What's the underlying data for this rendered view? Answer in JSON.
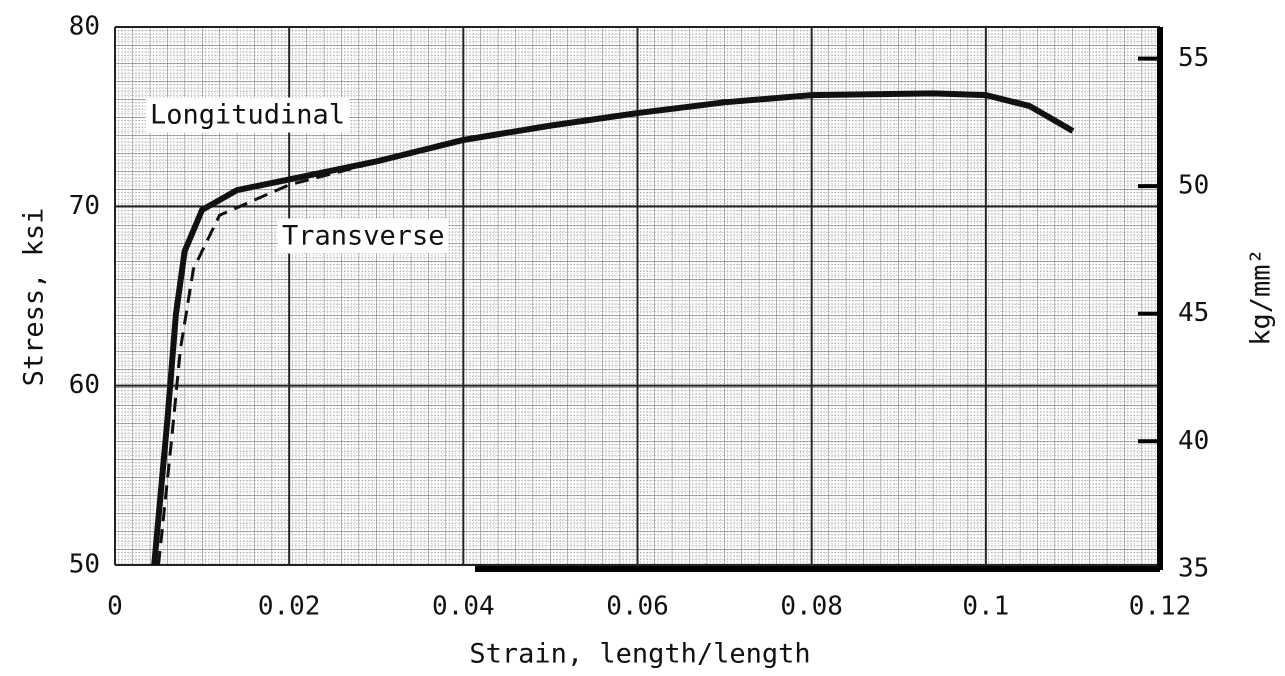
{
  "chart_data": {
    "type": "line",
    "xlabel": "Strain, length/length",
    "ylabel": "Stress, ksi",
    "y2label": "kg/mm²",
    "xlim": [
      0,
      0.12
    ],
    "xticks": [
      0,
      0.02,
      0.04,
      0.06,
      0.08,
      0.1,
      0.12
    ],
    "ylim": [
      50,
      80
    ],
    "yticks": [
      50,
      60,
      70,
      80
    ],
    "y2lim": [
      35.15,
      56.24
    ],
    "y2ticks": [
      35,
      40,
      45,
      50,
      55
    ],
    "grid": true,
    "series": [
      {
        "name": "Longitudinal",
        "color": "#111111",
        "x": [
          0.0045,
          0.006,
          0.007,
          0.008,
          0.01,
          0.014,
          0.02,
          0.03,
          0.04,
          0.05,
          0.06,
          0.07,
          0.08,
          0.094,
          0.1,
          0.105,
          0.11
        ],
        "values": [
          50,
          58,
          64,
          67.5,
          69.8,
          70.9,
          71.5,
          72.5,
          73.7,
          74.5,
          75.2,
          75.8,
          76.2,
          76.3,
          76.2,
          75.6,
          74.2
        ]
      },
      {
        "name": "Transverse",
        "color": "#111111",
        "x": [
          0.005,
          0.0065,
          0.0075,
          0.009,
          0.012,
          0.02,
          0.028,
          0.034
        ],
        "values": [
          50,
          57,
          62,
          66.5,
          69.5,
          71.2,
          72.2,
          73
        ]
      }
    ]
  }
}
